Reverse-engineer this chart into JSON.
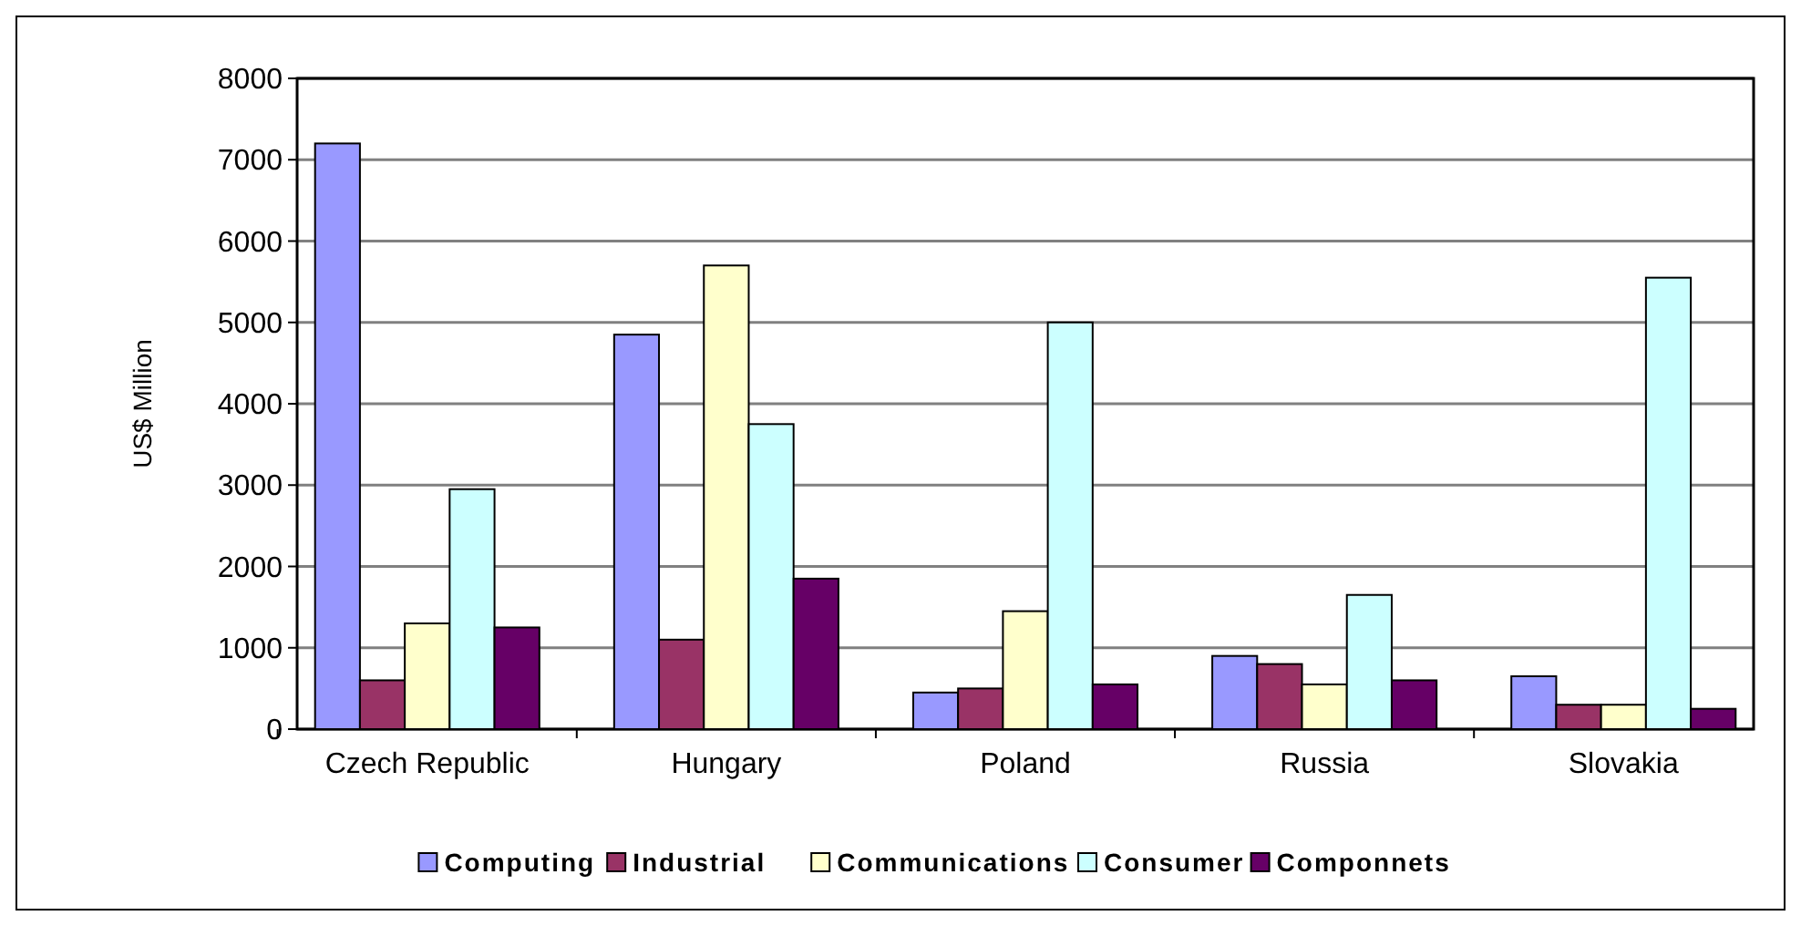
{
  "chart_data": {
    "type": "bar",
    "ylabel": "US$ Million",
    "categories": [
      "Czech Republic",
      "Hungary",
      "Poland",
      "Russia",
      "Slovakia"
    ],
    "series": [
      {
        "name": "Computing",
        "color": "#9999ff",
        "values": [
          7200,
          4850,
          450,
          900,
          650
        ]
      },
      {
        "name": "Industrial",
        "color": "#993366",
        "values": [
          600,
          1100,
          500,
          800,
          300
        ]
      },
      {
        "name": "Communications",
        "color": "#ffffcc",
        "values": [
          1300,
          5700,
          1450,
          550,
          300
        ]
      },
      {
        "name": "Consumer",
        "color": "#ccffff",
        "values": [
          2950,
          3750,
          5000,
          1650,
          5550
        ]
      },
      {
        "name": "Componnets",
        "color": "#660066",
        "values": [
          1250,
          1850,
          550,
          600,
          250
        ]
      }
    ],
    "ylim": [
      0,
      8000
    ],
    "yticks": [
      0,
      1000,
      2000,
      3000,
      4000,
      5000,
      6000,
      7000,
      8000
    ],
    "grid": "y",
    "legend": "bottom"
  }
}
